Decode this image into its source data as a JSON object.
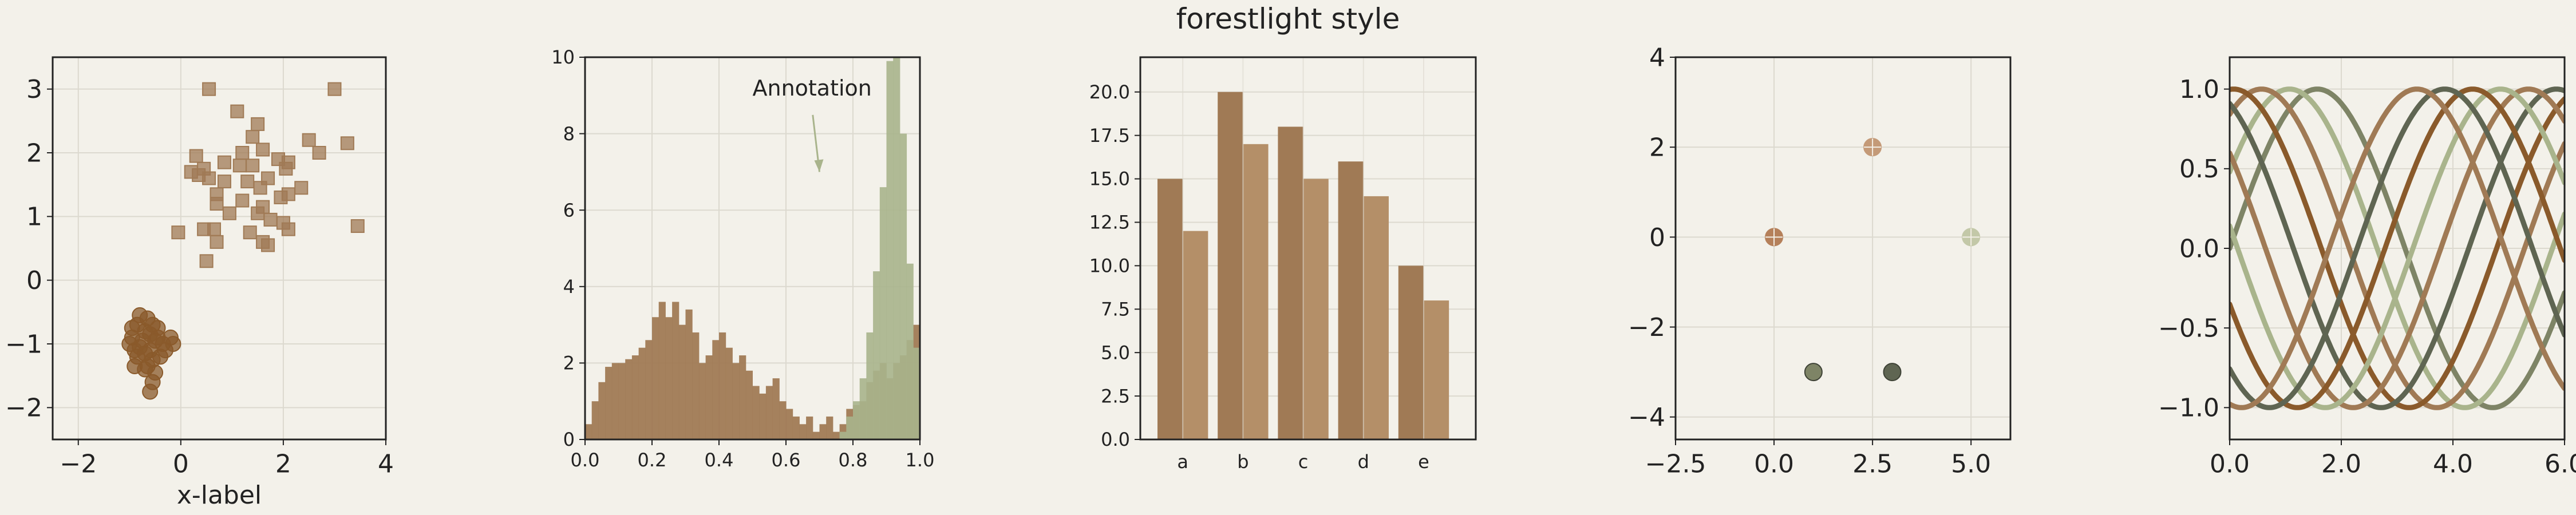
{
  "title": "forestlight style",
  "colors": {
    "background": "#f3f1ea",
    "axes_face": "#f3f1ea",
    "grid": "#dcd9cf",
    "spine": "#222222",
    "brown_dark": "#8a5a2b",
    "brown": "#a07a55",
    "tan": "#b48f68",
    "sage": "#a9b48c",
    "olive": "#7e8466",
    "slate": "#5f6552"
  },
  "chart_data": [
    {
      "type": "scatter",
      "xlabel": "x-label",
      "ylabel": "",
      "xlim": [
        -2.5,
        4
      ],
      "ylim": [
        -2.5,
        3.5
      ],
      "xticks": [
        -2,
        0,
        2,
        4
      ],
      "yticks": [
        -2,
        -1,
        0,
        1,
        2,
        3
      ],
      "grid": true,
      "series": [
        {
          "marker": "circle",
          "color": "#8a5a2b",
          "points": [
            [
              -0.9,
              -1.35
            ],
            [
              -0.6,
              -1.75
            ],
            [
              -0.55,
              -1.6
            ],
            [
              -0.8,
              -0.55
            ],
            [
              -0.65,
              -0.6
            ],
            [
              -0.55,
              -0.7
            ],
            [
              -0.7,
              -0.8
            ],
            [
              -0.95,
              -0.9
            ],
            [
              -1.0,
              -1.0
            ],
            [
              -0.8,
              -1.05
            ],
            [
              -0.6,
              -1.1
            ],
            [
              -0.45,
              -0.9
            ],
            [
              -0.35,
              -1.0
            ],
            [
              -0.4,
              -1.2
            ],
            [
              -0.2,
              -0.9
            ],
            [
              -0.65,
              -1.35
            ],
            [
              -0.95,
              -0.75
            ],
            [
              -0.5,
              -0.95
            ],
            [
              -0.7,
              -1.15
            ],
            [
              -0.85,
              -1.2
            ],
            [
              -0.3,
              -1.1
            ],
            [
              -0.75,
              -0.95
            ],
            [
              -0.6,
              -0.85
            ],
            [
              -0.55,
              -1.25
            ],
            [
              -0.9,
              -1.1
            ],
            [
              -0.45,
              -0.75
            ],
            [
              -0.7,
              -1.4
            ],
            [
              -0.15,
              -1.0
            ],
            [
              -0.5,
              -1.45
            ],
            [
              -0.85,
              -0.7
            ]
          ]
        },
        {
          "marker": "square",
          "color": "#a07a55",
          "points": [
            [
              0.55,
              3.0
            ],
            [
              3.0,
              3.0
            ],
            [
              1.1,
              2.65
            ],
            [
              1.5,
              2.45
            ],
            [
              1.4,
              2.25
            ],
            [
              2.5,
              2.2
            ],
            [
              3.25,
              2.15
            ],
            [
              0.3,
              1.95
            ],
            [
              1.2,
              2.0
            ],
            [
              1.6,
              2.05
            ],
            [
              2.7,
              2.0
            ],
            [
              1.9,
              1.9
            ],
            [
              2.1,
              1.85
            ],
            [
              0.85,
              1.85
            ],
            [
              0.2,
              1.7
            ],
            [
              0.45,
              1.75
            ],
            [
              1.15,
              1.8
            ],
            [
              1.4,
              1.8
            ],
            [
              2.05,
              1.75
            ],
            [
              0.35,
              1.65
            ],
            [
              0.55,
              1.6
            ],
            [
              1.7,
              1.6
            ],
            [
              0.85,
              1.55
            ],
            [
              1.3,
              1.55
            ],
            [
              1.55,
              1.45
            ],
            [
              0.7,
              1.35
            ],
            [
              2.35,
              1.45
            ],
            [
              2.1,
              1.35
            ],
            [
              1.95,
              1.3
            ],
            [
              1.2,
              1.25
            ],
            [
              0.7,
              1.2
            ],
            [
              1.6,
              1.15
            ],
            [
              0.95,
              1.05
            ],
            [
              1.5,
              1.05
            ],
            [
              2.0,
              0.9
            ],
            [
              0.45,
              0.8
            ],
            [
              1.75,
              0.95
            ],
            [
              3.45,
              0.85
            ],
            [
              2.1,
              0.8
            ],
            [
              0.65,
              0.8
            ],
            [
              1.35,
              0.75
            ],
            [
              -0.05,
              0.75
            ],
            [
              0.7,
              0.6
            ],
            [
              1.6,
              0.6
            ],
            [
              1.7,
              0.55
            ],
            [
              0.5,
              0.3
            ]
          ]
        }
      ]
    },
    {
      "type": "histogram",
      "xlim": [
        0,
        1
      ],
      "ylim": [
        0,
        10
      ],
      "xticks": [
        0.0,
        0.2,
        0.4,
        0.6,
        0.8,
        1.0
      ],
      "yticks": [
        0,
        2,
        4,
        6,
        8,
        10
      ],
      "grid": true,
      "bin_width": 0.02,
      "annotation": {
        "text": "Annotation",
        "text_xy": [
          0.5,
          9.0
        ],
        "arrow_to": [
          0.7,
          7.0
        ]
      },
      "series": [
        {
          "color": "#a07a55",
          "bins_start": 0.0,
          "heights": [
            0.4,
            1.0,
            1.5,
            1.9,
            2.0,
            2.0,
            2.1,
            2.2,
            2.4,
            2.6,
            3.2,
            3.6,
            3.2,
            3.6,
            3.0,
            3.4,
            2.8,
            2.0,
            2.2,
            2.6,
            2.8,
            2.4,
            2.0,
            2.2,
            1.8,
            1.4,
            1.2,
            1.4,
            1.6,
            1.0,
            0.8,
            0.6,
            0.4,
            0.6,
            0.2,
            0.4,
            0.6,
            0.2,
            0.4,
            0.8,
            0.9,
            1.0,
            1.5,
            1.8,
            2.0,
            1.6,
            2.0,
            2.2,
            2.6,
            3.0
          ]
        },
        {
          "color": "#a9b48c",
          "bins_start": 0.76,
          "heights": [
            0.2,
            0.6,
            1.0,
            1.6,
            2.8,
            4.4,
            6.6,
            9.9,
            10.0,
            8.0,
            4.6,
            2.4
          ]
        }
      ]
    },
    {
      "type": "bar",
      "categories": [
        "a",
        "b",
        "c",
        "d",
        "e"
      ],
      "ylim": [
        0,
        22
      ],
      "yticks": [
        0.0,
        2.5,
        5.0,
        7.5,
        10.0,
        12.5,
        15.0,
        17.5,
        20.0
      ],
      "grid": true,
      "series": [
        {
          "color": "#a07a55",
          "values": [
            15,
            20,
            18,
            16,
            10
          ]
        },
        {
          "color": "#b48f68",
          "values": [
            12,
            17,
            15,
            14,
            8
          ]
        }
      ]
    },
    {
      "type": "scatter",
      "xlim": [
        -2.5,
        6
      ],
      "ylim": [
        -4.5,
        4
      ],
      "xticks": [
        -2.5,
        0.0,
        2.5,
        5.0
      ],
      "yticks": [
        -4,
        -2,
        0,
        2,
        4
      ],
      "grid": true,
      "points": [
        {
          "x": 0,
          "y": 0,
          "color": "#b5805a",
          "marker": "circle-plus"
        },
        {
          "x": 2.5,
          "y": 2,
          "color": "#c49a78",
          "marker": "circle-plus"
        },
        {
          "x": 5,
          "y": 0,
          "color": "#c3c8a8",
          "marker": "circle-plus"
        },
        {
          "x": 1,
          "y": -3,
          "color": "#7e8466",
          "marker": "circle"
        },
        {
          "x": 3,
          "y": -3,
          "color": "#5f6552",
          "marker": "circle"
        }
      ]
    },
    {
      "type": "line",
      "xlim": [
        0,
        6
      ],
      "ylim": [
        -1.2,
        1.2
      ],
      "xticks": [
        0,
        2,
        4,
        6
      ],
      "yticks": [
        -1.0,
        -0.5,
        0.0,
        0.5,
        1.0
      ],
      "grid": true,
      "function": "sin(x + phase)",
      "series": [
        {
          "phase": 0,
          "color": "#7e8466"
        },
        {
          "phase": 0.5,
          "color": "#a9b48c"
        },
        {
          "phase": 1.0,
          "color": "#a07a55"
        },
        {
          "phase": 1.5,
          "color": "#8a5a2b"
        },
        {
          "phase": 2.0,
          "color": "#5f6552"
        },
        {
          "phase": 2.5,
          "color": "#a07a55"
        },
        {
          "phase": 3.0,
          "color": "#a9b48c"
        },
        {
          "phase": 3.5,
          "color": "#8a5a2b"
        },
        {
          "phase": 4.0,
          "color": "#5f6552"
        },
        {
          "phase": 4.5,
          "color": "#a07a55"
        }
      ]
    }
  ]
}
